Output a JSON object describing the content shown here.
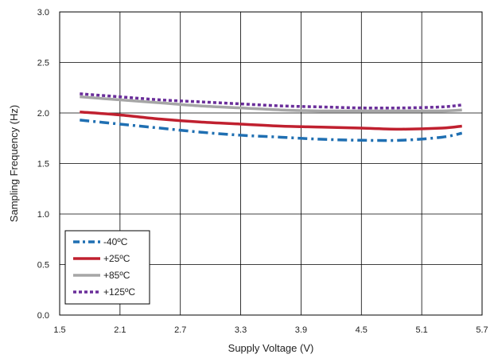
{
  "chart_data": {
    "type": "line",
    "title": "",
    "xlabel": "Supply Voltage (V)",
    "ylabel": "Sampling Frequency (Hz)",
    "xlim": [
      1.5,
      5.7
    ],
    "ylim": [
      0.0,
      3.0
    ],
    "x_ticks": [
      "1.5",
      "2.1",
      "2.7",
      "3.3",
      "3.9",
      "4.5",
      "5.1",
      "5.7"
    ],
    "y_ticks": [
      "0.0",
      "0.5",
      "1.0",
      "1.5",
      "2.0",
      "2.5",
      "3.0"
    ],
    "grid": true,
    "legend_position": "bottom-left",
    "x": [
      1.7,
      2.1,
      2.5,
      2.9,
      3.3,
      3.7,
      4.1,
      4.5,
      4.9,
      5.3,
      5.5
    ],
    "series": [
      {
        "name": "-40ºC",
        "color": "#1f6fb2",
        "dash": "dash-dot",
        "values": [
          1.93,
          1.89,
          1.85,
          1.81,
          1.78,
          1.76,
          1.74,
          1.73,
          1.73,
          1.76,
          1.8
        ]
      },
      {
        "name": "+25ºC",
        "color": "#c0202f",
        "dash": "solid",
        "values": [
          2.01,
          1.98,
          1.94,
          1.91,
          1.89,
          1.87,
          1.86,
          1.85,
          1.84,
          1.85,
          1.87
        ]
      },
      {
        "name": "+85ºC",
        "color": "#a6a6a6",
        "dash": "solid",
        "values": [
          2.16,
          2.13,
          2.1,
          2.07,
          2.05,
          2.03,
          2.02,
          2.02,
          2.02,
          2.02,
          2.03
        ]
      },
      {
        "name": "+125ºC",
        "color": "#6a2e9a",
        "dash": "dot",
        "values": [
          2.19,
          2.16,
          2.13,
          2.11,
          2.09,
          2.07,
          2.06,
          2.05,
          2.05,
          2.06,
          2.08
        ]
      }
    ]
  }
}
